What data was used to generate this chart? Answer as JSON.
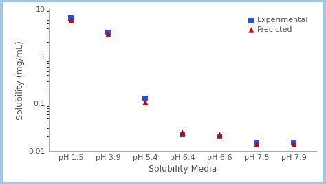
{
  "x_labels": [
    "pH 1.5",
    "pH 3.9",
    "pH 5.4",
    "pH 6.4",
    "pH 6.6",
    "pH 7.5",
    "pH 7.9"
  ],
  "experimental": [
    6.5,
    3.2,
    0.13,
    0.022,
    0.02,
    0.015,
    0.015
  ],
  "predicted": [
    6.0,
    3.0,
    0.11,
    0.025,
    0.022,
    0.014,
    0.014
  ],
  "exp_color": "#2255dd",
  "pred_color": "#cc0000",
  "exp_marker": "s",
  "pred_marker": "^",
  "exp_label": "Experimental",
  "pred_label": "Precicted",
  "xlabel": "Solubility Media",
  "ylabel": "Solubility (mg/mL)",
  "ylim_low": 0.01,
  "ylim_high": 10,
  "marker_size": 6,
  "background_color": "#ffffff",
  "border_color": "#a0c8e8",
  "text_color": "#555555",
  "spine_color": "#aaaaaa",
  "legend_fontsize": 8,
  "axis_label_fontsize": 9,
  "tick_fontsize": 8
}
